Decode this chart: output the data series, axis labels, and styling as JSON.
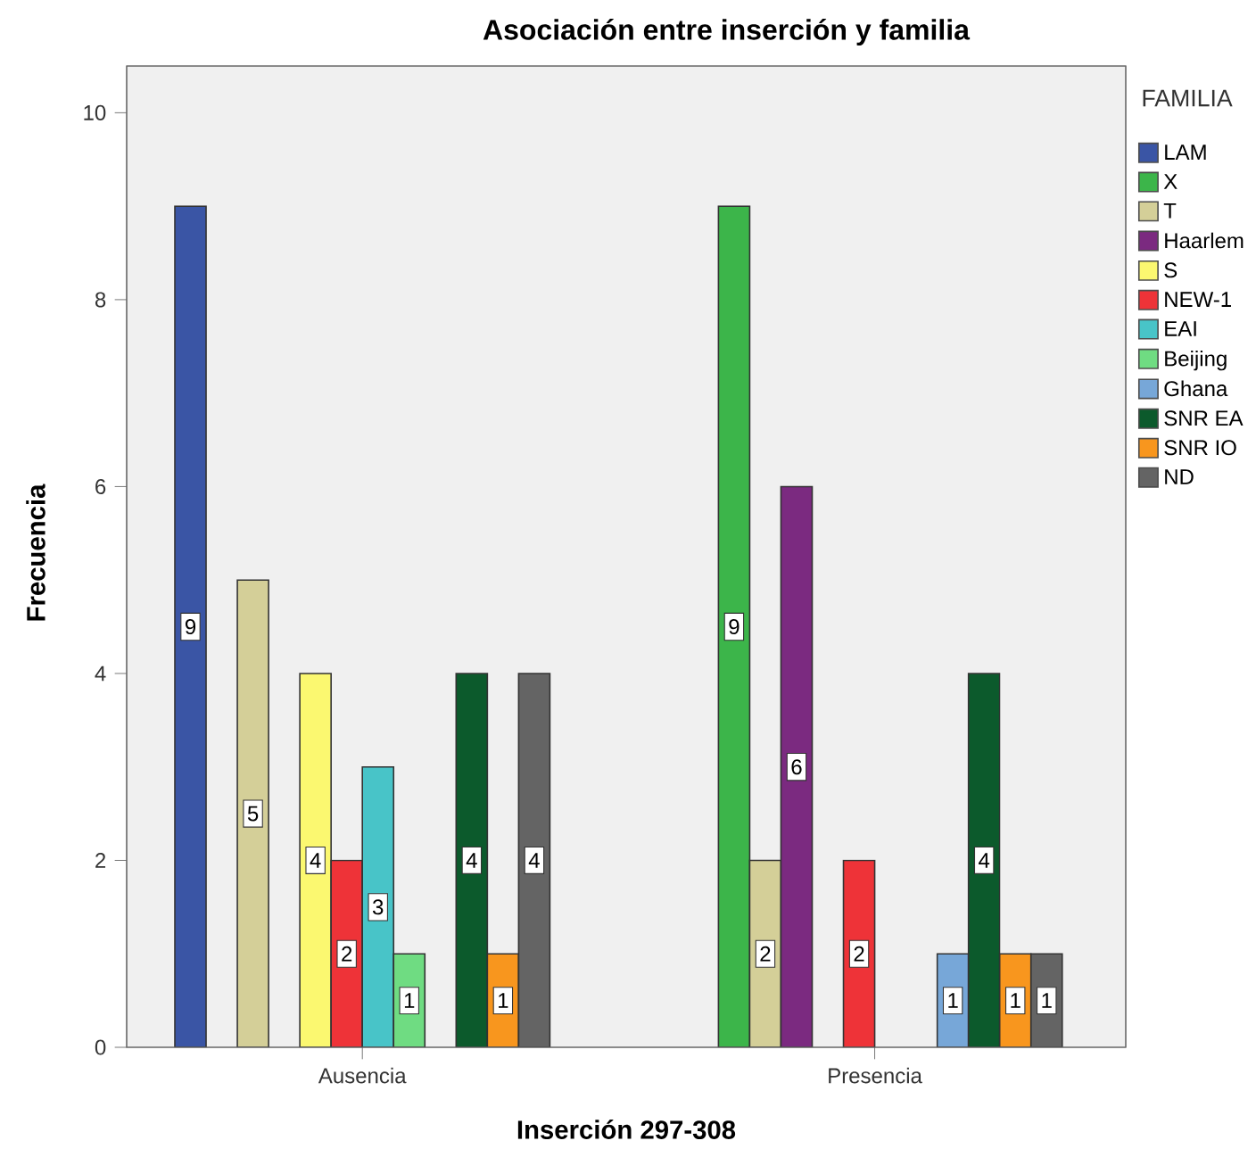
{
  "chart_data": {
    "type": "bar",
    "title": "Asociación entre inserción y familia",
    "xlabel": "Inserción 297-308",
    "ylabel": "Frecuencia",
    "legend_title": "FAMILIA",
    "categories": [
      "Ausencia",
      "Presencia"
    ],
    "series": [
      {
        "name": "LAM",
        "color": "#3a55a5",
        "values": [
          9,
          null
        ]
      },
      {
        "name": "X",
        "color": "#3cb54a",
        "values": [
          null,
          9
        ]
      },
      {
        "name": "T",
        "color": "#d4cf98",
        "values": [
          5,
          2
        ]
      },
      {
        "name": "Haarlem",
        "color": "#7b2a80",
        "values": [
          null,
          6
        ]
      },
      {
        "name": "S",
        "color": "#fbf870",
        "values": [
          4,
          null
        ]
      },
      {
        "name": "NEW-1",
        "color": "#ee3338",
        "values": [
          2,
          2
        ]
      },
      {
        "name": "EAI",
        "color": "#48c4c8",
        "values": [
          3,
          null
        ]
      },
      {
        "name": "Beijing",
        "color": "#6fdc82",
        "values": [
          1,
          null
        ]
      },
      {
        "name": "Ghana",
        "color": "#77a7d8",
        "values": [
          null,
          1
        ]
      },
      {
        "name": "SNR EA",
        "color": "#0c5a2c",
        "values": [
          4,
          4
        ]
      },
      {
        "name": "SNR IO",
        "color": "#f8961e",
        "values": [
          1,
          1
        ]
      },
      {
        "name": "ND",
        "color": "#646464",
        "values": [
          4,
          1
        ]
      }
    ],
    "ylim": [
      0,
      10.5
    ],
    "yticks": [
      0,
      2,
      4,
      6,
      8,
      10
    ],
    "data_labels": true,
    "legend": "right",
    "grid": false
  }
}
